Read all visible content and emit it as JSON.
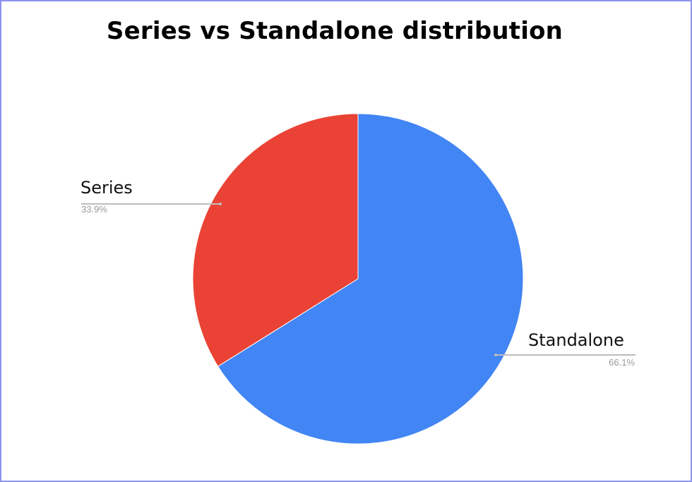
{
  "chart_data": {
    "type": "pie",
    "title": "Series vs Standalone distribution",
    "slices": [
      {
        "label": "Standalone",
        "value": 66.1,
        "value_label": "66.1%",
        "color": "#4285f4"
      },
      {
        "label": "Series",
        "value": 33.9,
        "value_label": "33.9%",
        "color": "#ea4335"
      }
    ],
    "start_angle_deg": 0,
    "direction": "clockwise",
    "legend": "none",
    "labels_position": "outside-with-leader-lines"
  },
  "colors": {
    "border": "#8c93f0",
    "leader_line": "#bdbdbd",
    "percent_text": "#9a9a9a"
  }
}
